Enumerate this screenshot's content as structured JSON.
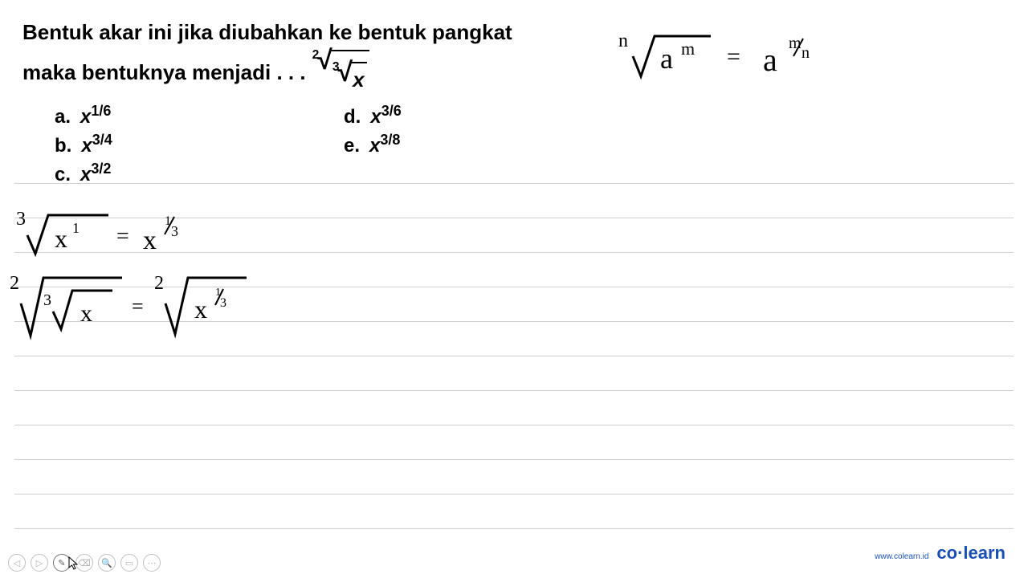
{
  "question": {
    "line1": "Bentuk akar  ini jika diubahkan ke bentuk pangkat",
    "line2": "maka bentuknya menjadi . . .",
    "expression": {
      "outer_index": "2",
      "inner_index": "3",
      "variable": "x"
    }
  },
  "options": {
    "a": {
      "label": "a.",
      "var": "x",
      "exp": "1/6"
    },
    "b": {
      "label": "b.",
      "var": "x",
      "exp": "3/4"
    },
    "c": {
      "label": "c.",
      "var": "x",
      "exp": "3/2"
    },
    "d": {
      "label": "d.",
      "var": "x",
      "exp": "3/6"
    },
    "e": {
      "label": "e.",
      "var": "x",
      "exp": "3/8"
    }
  },
  "formula": {
    "root_index": "n",
    "base": "a",
    "inner_exp": "m",
    "equals": "=",
    "result_base": "a",
    "result_exp": "m/n"
  },
  "work": {
    "step1": {
      "root_index": "3",
      "base": "x",
      "inner_exp": "1",
      "equals": "=",
      "result_base": "x",
      "result_exp": "⅓"
    },
    "step2": {
      "outer_index": "2",
      "inner_index": "3",
      "base": "x",
      "equals": "=",
      "right_index": "2",
      "right_base": "x",
      "right_exp": "⅓"
    }
  },
  "lines": {
    "positions": [
      0,
      43,
      86,
      129,
      172,
      215,
      258,
      301,
      344,
      387,
      430
    ],
    "color": "#d0d0d0"
  },
  "toolbar": {
    "buttons": [
      {
        "name": "prev",
        "glyph": "◁",
        "active": false
      },
      {
        "name": "next",
        "glyph": "▷",
        "active": false
      },
      {
        "name": "pen",
        "glyph": "✎",
        "active": true
      },
      {
        "name": "eraser",
        "glyph": "⌫",
        "active": false
      },
      {
        "name": "search",
        "glyph": "🔍",
        "active": false
      },
      {
        "name": "screen",
        "glyph": "▭",
        "active": false
      },
      {
        "name": "more",
        "glyph": "⋯",
        "active": false
      }
    ]
  },
  "footer": {
    "url": "www.colearn.id",
    "logo_pre": "co",
    "logo_dot": "·",
    "logo_post": "learn"
  },
  "colors": {
    "text": "#000000",
    "line": "#d0d0d0",
    "brand": "#1a4fb5",
    "toolbar_inactive": "#c0c0c0",
    "toolbar_active": "#707070",
    "background": "#ffffff"
  }
}
